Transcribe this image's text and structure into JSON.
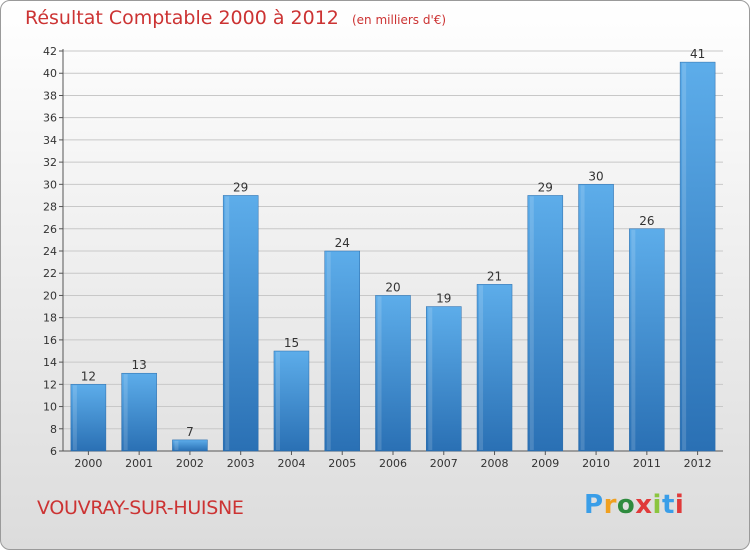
{
  "chart_data": {
    "type": "bar",
    "title": "Résultat Comptable 2000 à 2012",
    "subtitle": "(en milliers d'€)",
    "categories": [
      "2000",
      "2001",
      "2002",
      "2003",
      "2004",
      "2005",
      "2006",
      "2007",
      "2008",
      "2009",
      "2010",
      "2011",
      "2012"
    ],
    "values": [
      12,
      13,
      7,
      29,
      15,
      24,
      20,
      19,
      21,
      29,
      30,
      26,
      41
    ],
    "ylim": [
      6,
      42
    ],
    "yticks": [
      6,
      8,
      10,
      12,
      14,
      16,
      18,
      20,
      22,
      24,
      26,
      28,
      30,
      32,
      34,
      36,
      38,
      40,
      42
    ],
    "grid": true,
    "bar_color": "#3a8fd4",
    "bar_color_light": "#5dadea",
    "bar_color_dark": "#2a70b4"
  },
  "footer": {
    "place": "VOUVRAY-SUR-HUISNE",
    "logo_letters": [
      "P",
      "r",
      "o",
      "x",
      "i",
      "t",
      "i"
    ],
    "logo_colors": [
      "#3a9ee8",
      "#f0a020",
      "#2e8b3e",
      "#e03a3a",
      "#8bc53f",
      "#3a9ee8",
      "#e03a3a"
    ]
  },
  "colors": {
    "title": "#cc3333"
  }
}
